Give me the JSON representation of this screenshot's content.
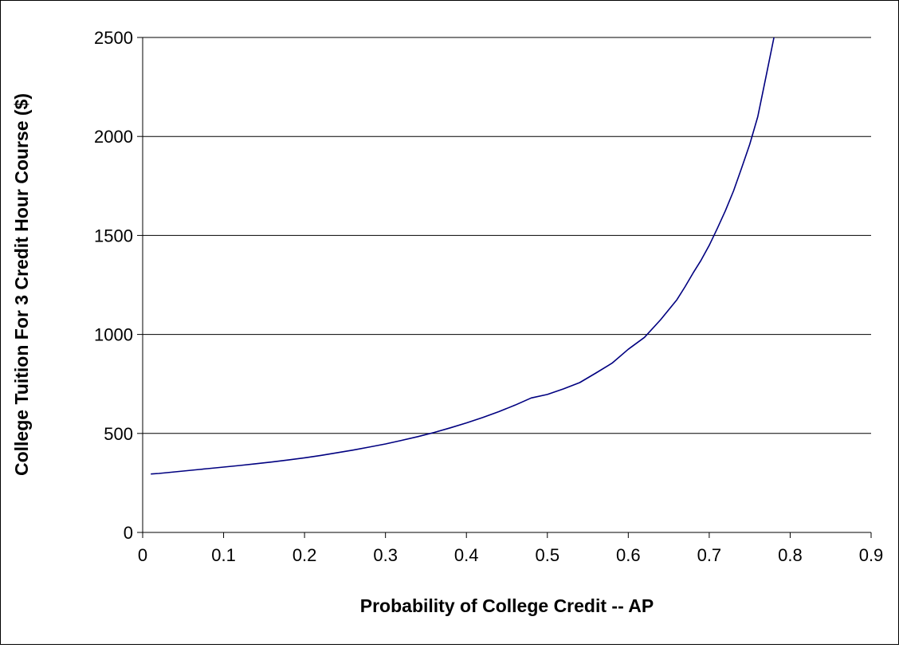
{
  "chart_data": {
    "type": "line",
    "title": "",
    "xlabel": "Probability of College Credit -- AP",
    "ylabel": "College Tuition For 3 Credit Hour Course ($)",
    "xlim": [
      0,
      0.9
    ],
    "ylim": [
      0,
      2500
    ],
    "x_ticks": [
      "0",
      "0.1",
      "0.2",
      "0.3",
      "0.4",
      "0.5",
      "0.6",
      "0.7",
      "0.8",
      "0.9"
    ],
    "y_ticks": [
      "0",
      "500",
      "1000",
      "1500",
      "2000",
      "2500"
    ],
    "grid": "horizontal",
    "legend": "none",
    "series": [
      {
        "color": "#000080",
        "x": [
          0.01,
          0.02,
          0.03,
          0.04,
          0.05,
          0.06,
          0.07,
          0.08,
          0.09,
          0.1,
          0.12,
          0.14,
          0.16,
          0.18,
          0.2,
          0.22,
          0.24,
          0.26,
          0.28,
          0.3,
          0.32,
          0.34,
          0.36,
          0.38,
          0.4,
          0.42,
          0.44,
          0.46,
          0.48,
          0.5,
          0.52,
          0.54,
          0.56,
          0.58,
          0.6,
          0.62,
          0.64,
          0.66,
          0.67,
          0.68,
          0.69,
          0.7,
          0.71,
          0.72,
          0.73,
          0.74,
          0.75,
          0.76,
          0.77,
          0.78
        ],
        "values": [
          295,
          298,
          302,
          306,
          310,
          314,
          318,
          322,
          326,
          330,
          338,
          347,
          356,
          366,
          377,
          389,
          402,
          416,
          431,
          447,
          465,
          484,
          505,
          528,
          553,
          580,
          610,
          643,
          679,
          697,
          725,
          757,
          805,
          855,
          925,
          985,
          1075,
          1175,
          1240,
          1310,
          1375,
          1450,
          1535,
          1625,
          1725,
          1840,
          1960,
          2100,
          2300,
          2500
        ]
      }
    ]
  }
}
